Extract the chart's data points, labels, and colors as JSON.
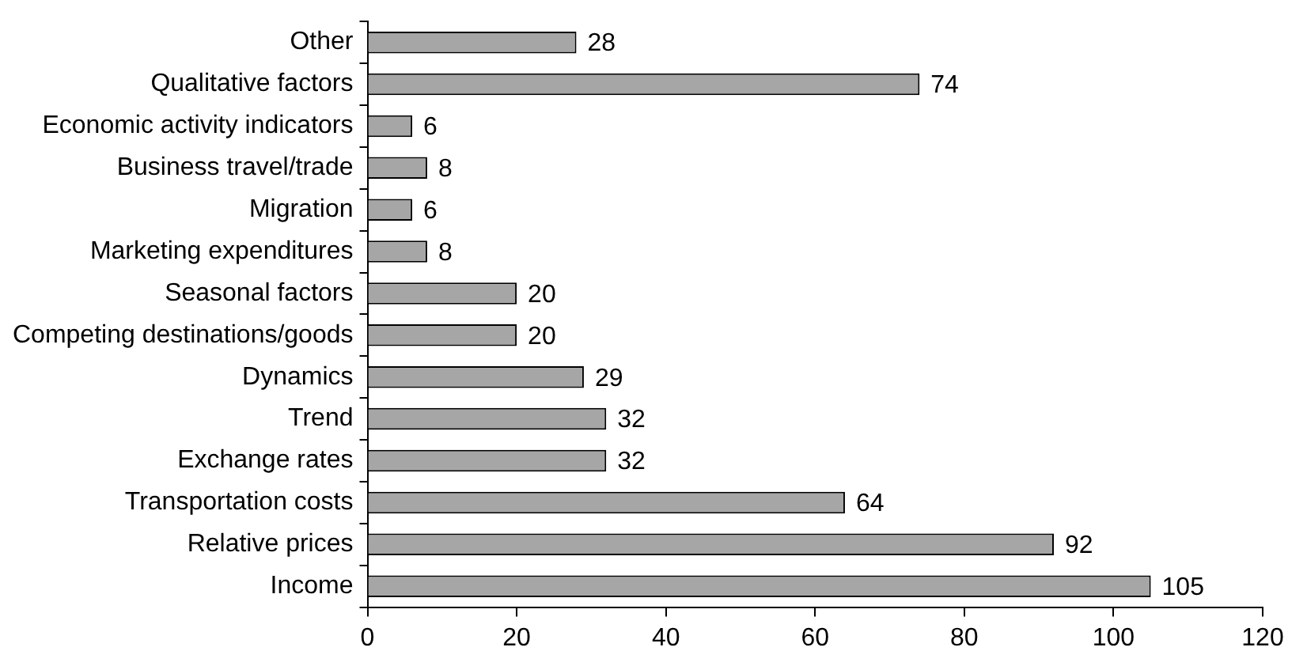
{
  "chart_data": {
    "type": "bar",
    "orientation": "horizontal",
    "categories": [
      "Other",
      "Qualitative factors",
      "Economic activity indicators",
      "Business travel/trade",
      "Migration",
      "Marketing expenditures",
      "Seasonal factors",
      "Competing destinations/goods",
      "Dynamics",
      "Trend",
      "Exchange rates",
      "Transportation costs",
      "Relative prices",
      "Income"
    ],
    "values": [
      28,
      74,
      6,
      8,
      6,
      8,
      20,
      20,
      29,
      32,
      32,
      64,
      92,
      105
    ],
    "color": "#a6a6a6",
    "xlim": [
      0,
      120
    ],
    "xticks": [
      0,
      20,
      40,
      60,
      80,
      100,
      120
    ],
    "grid": false,
    "legend": false,
    "data_labels": true
  }
}
